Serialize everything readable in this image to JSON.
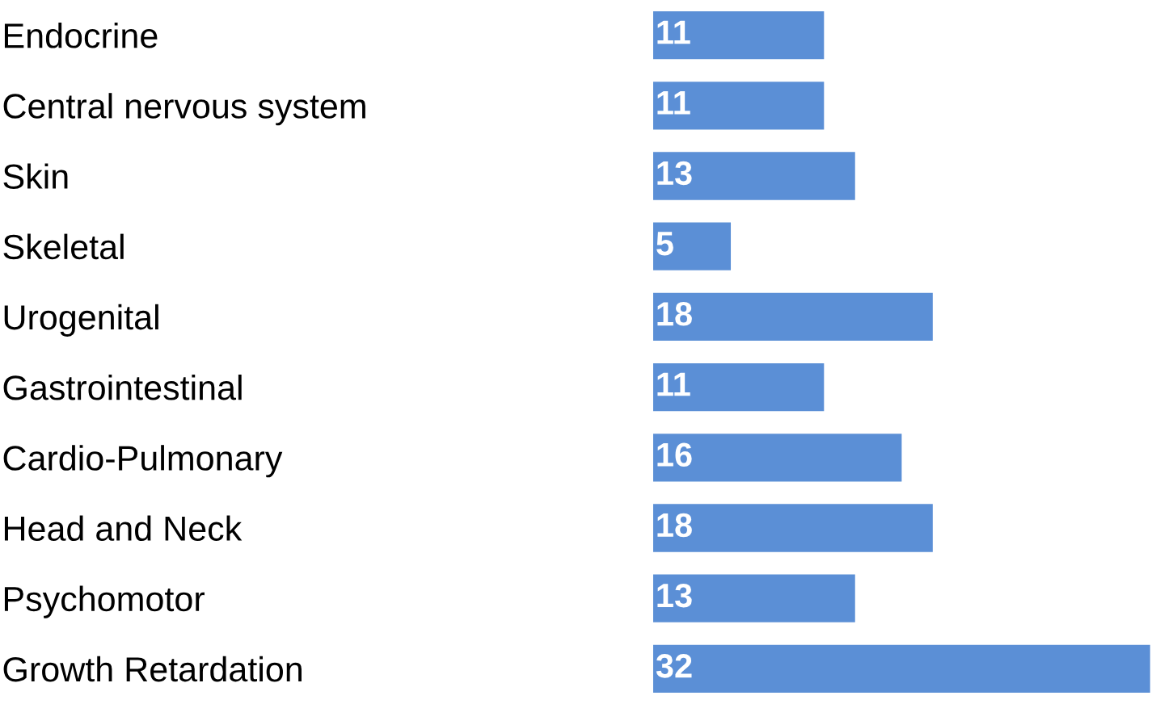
{
  "chart_data": {
    "type": "bar",
    "orientation": "horizontal",
    "categories": [
      "Endocrine",
      "Central nervous system",
      "Skin",
      "Skeletal",
      "Urogenital",
      "Gastrointestinal",
      "Cardio-Pulmonary",
      "Head and Neck",
      "Psychomotor",
      "Growth Retardation"
    ],
    "values": [
      11,
      11,
      13,
      5,
      18,
      11,
      16,
      18,
      13,
      32
    ],
    "color": "#5b8fd6",
    "data_labels": true,
    "grid": false,
    "legend": false
  }
}
